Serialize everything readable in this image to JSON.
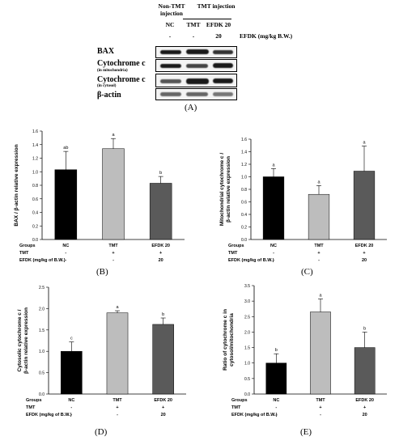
{
  "blot": {
    "header_non_tmt": "Non-TMT injection",
    "header_tmt": "TMT injection",
    "lane_labels": [
      "NC",
      "TMT",
      "EFDK 20"
    ],
    "efdk_values": [
      "-",
      "-",
      "20"
    ],
    "efdk_unit": "EFDK (mg/kg B.W.)",
    "rows": [
      {
        "label": "BAX",
        "sub": ""
      },
      {
        "label": "Cytochrome c",
        "sub": "(in mitochondria)"
      },
      {
        "label": "Cytochrome c",
        "sub": "(in cytosol)"
      },
      {
        "label": "β-actin",
        "sub": ""
      }
    ],
    "panel": "(A)"
  },
  "footer_rows": {
    "groups_label": "Groups",
    "tmt_label": "TMT",
    "efdk_label_1": "EFDK (mg/kg of B.W.)",
    "efdk_label_2": "EFDK (mg/kg of B.W.)",
    "efdk_label_3": "EFDK (mg/kg of B.W.)",
    "efdk_label_4": "EFDK (mg/kg of B.W.)",
    "group_names": [
      "NC",
      "TMT",
      "EFDK 20"
    ],
    "tmt_values": [
      "-",
      "+",
      "+"
    ],
    "efdk_values": [
      "-",
      "-",
      "20"
    ]
  },
  "chart_data": [
    {
      "panel": "(B)",
      "type": "bar",
      "categories": [
        "NC",
        "TMT",
        "EFDK 20"
      ],
      "values": [
        1.03,
        1.34,
        0.83
      ],
      "errors": [
        0.27,
        0.15,
        0.1
      ],
      "letters": [
        "ab",
        "a",
        "b"
      ],
      "colors": [
        "#000000",
        "#bdbdbd",
        "#5a5a5a"
      ],
      "ylabel": "BAX / β-actin relative expression",
      "ylim": [
        0,
        1.6
      ],
      "yticks": [
        "0.0",
        "0.2",
        "0.4",
        "0.6",
        "0.8",
        "1.0",
        "1.2",
        "1.4",
        "1.6"
      ]
    },
    {
      "panel": "(C)",
      "type": "bar",
      "categories": [
        "NC",
        "TMT",
        "EFDK 20"
      ],
      "values": [
        1.0,
        0.72,
        1.09
      ],
      "errors": [
        0.13,
        0.14,
        0.4
      ],
      "letters": [
        "a",
        "a",
        "a"
      ],
      "colors": [
        "#000000",
        "#bdbdbd",
        "#5a5a5a"
      ],
      "ylabel": "Mitochondrial cytochrome c / β-actin relative expression",
      "ylim": [
        0,
        1.6
      ],
      "yticks": [
        "0.0",
        "0.2",
        "0.4",
        "0.6",
        "0.8",
        "1.0",
        "1.2",
        "1.4",
        "1.6"
      ]
    },
    {
      "panel": "(D)",
      "type": "bar",
      "categories": [
        "NC",
        "TMT",
        "EFDK 20"
      ],
      "values": [
        1.0,
        1.9,
        1.63
      ],
      "errors": [
        0.22,
        0.05,
        0.15
      ],
      "letters": [
        "c",
        "a",
        "b"
      ],
      "colors": [
        "#000000",
        "#bdbdbd",
        "#5a5a5a"
      ],
      "ylabel": "Cytosolic cytochrome c / β-actin relative expression",
      "ylim": [
        0,
        2.5
      ],
      "yticks": [
        "0.0",
        "0.5",
        "1.0",
        "1.5",
        "2.0",
        "2.5"
      ]
    },
    {
      "panel": "(E)",
      "type": "bar",
      "categories": [
        "NC",
        "TMT",
        "EFDK 20"
      ],
      "values": [
        1.0,
        2.65,
        1.5
      ],
      "errors": [
        0.3,
        0.42,
        0.5
      ],
      "letters": [
        "b",
        "a",
        "b"
      ],
      "colors": [
        "#000000",
        "#bdbdbd",
        "#5a5a5a"
      ],
      "ylabel": "Ratio of cytochrome c in cytosol/mitochondria",
      "ylim": [
        0,
        3.5
      ],
      "yticks": [
        "0.0",
        "0.5",
        "1.0",
        "1.5",
        "2.0",
        "2.5",
        "3.0",
        "3.5"
      ]
    }
  ]
}
